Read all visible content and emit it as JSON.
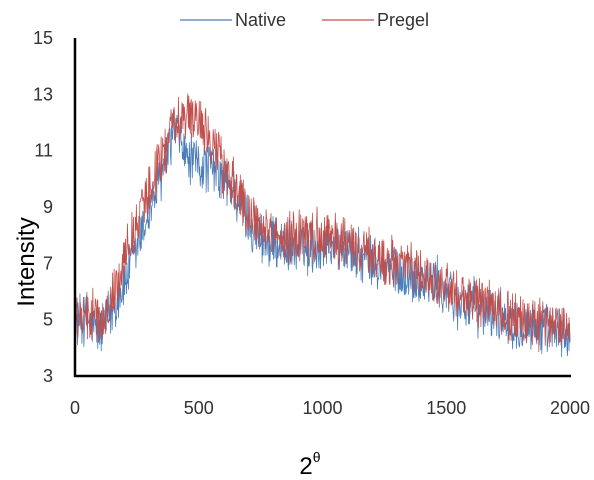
{
  "chart_data": {
    "type": "line",
    "title": "",
    "xlabel": "2",
    "xlabel_superscript": "θ",
    "ylabel": "Intensity",
    "xlim": [
      0,
      2000
    ],
    "ylim": [
      3,
      15
    ],
    "x_ticks": [
      0,
      500,
      1000,
      1500,
      2000
    ],
    "y_ticks": [
      3,
      5,
      7,
      9,
      11,
      13,
      15
    ],
    "x_tick_labels": [
      "0",
      "500",
      "1000",
      "1500",
      "2000"
    ],
    "y_tick_labels": [
      "3",
      "5",
      "7",
      "9",
      "11",
      "13",
      "15"
    ],
    "grid": false,
    "legend": {
      "placement": "top"
    },
    "noise_amplitude": 1.1,
    "series": [
      {
        "name": "Native",
        "color": "#4a7ebb",
        "x": [
          0,
          50,
          100,
          150,
          200,
          250,
          300,
          350,
          380,
          400,
          420,
          450,
          500,
          550,
          600,
          650,
          700,
          750,
          800,
          850,
          900,
          950,
          1000,
          1050,
          1100,
          1150,
          1200,
          1250,
          1300,
          1350,
          1400,
          1450,
          1500,
          1550,
          1600,
          1650,
          1700,
          1750,
          1800,
          1850,
          1900,
          1950,
          2000
        ],
        "y": [
          5.0,
          5.0,
          4.6,
          5.3,
          6.3,
          7.5,
          8.9,
          10.1,
          11.0,
          11.8,
          11.5,
          10.7,
          10.5,
          10.4,
          10.0,
          9.4,
          8.5,
          7.9,
          7.6,
          7.6,
          7.5,
          7.5,
          7.6,
          7.7,
          7.5,
          7.2,
          7.0,
          6.8,
          6.7,
          6.5,
          6.4,
          6.3,
          6.0,
          5.6,
          5.5,
          5.3,
          5.2,
          5.0,
          4.9,
          4.8,
          4.6,
          4.5,
          4.4
        ]
      },
      {
        "name": "Pregel",
        "color": "#c0504d",
        "x": [
          0,
          50,
          100,
          150,
          200,
          250,
          300,
          350,
          380,
          400,
          420,
          450,
          500,
          550,
          600,
          650,
          700,
          750,
          800,
          850,
          900,
          950,
          1000,
          1050,
          1100,
          1150,
          1200,
          1250,
          1300,
          1350,
          1400,
          1450,
          1500,
          1550,
          1600,
          1650,
          1700,
          1750,
          1800,
          1850,
          1900,
          1950,
          2000
        ],
        "y": [
          5.1,
          5.2,
          5.0,
          5.8,
          7.0,
          8.5,
          9.7,
          10.8,
          11.5,
          11.9,
          12.0,
          12.1,
          12.0,
          11.4,
          10.3,
          9.6,
          8.8,
          8.2,
          8.0,
          7.9,
          7.9,
          7.9,
          8.0,
          7.9,
          7.7,
          7.4,
          7.2,
          7.0,
          6.9,
          6.8,
          6.7,
          6.5,
          6.2,
          5.9,
          5.7,
          5.5,
          5.4,
          5.2,
          5.0,
          4.9,
          4.8,
          4.7,
          4.6
        ]
      }
    ]
  }
}
